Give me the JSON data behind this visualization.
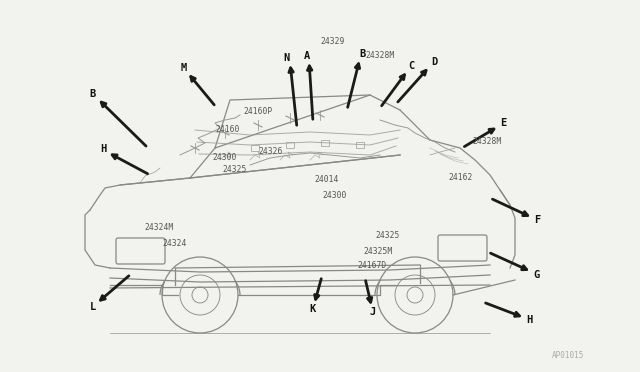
{
  "bg_color": "#f2f2ee",
  "arrow_color": "#1a1a1a",
  "text_color": "#333333",
  "part_color": "#555555",
  "car_color": "#888888",
  "wire_color": "#999999",
  "fig_width": 6.4,
  "fig_height": 3.72,
  "dpi": 100,
  "watermark": "AP01015",
  "parts": [
    [
      "24329",
      320,
      42
    ],
    [
      "24328M",
      365,
      55
    ],
    [
      "24160P",
      243,
      112
    ],
    [
      "24160",
      215,
      130
    ],
    [
      "24300",
      212,
      157
    ],
    [
      "24325",
      222,
      170
    ],
    [
      "24326",
      258,
      152
    ],
    [
      "24014",
      314,
      180
    ],
    [
      "24300",
      322,
      196
    ],
    [
      "24324M",
      144,
      228
    ],
    [
      "24324",
      162,
      244
    ],
    [
      "24325",
      375,
      236
    ],
    [
      "24325M",
      363,
      252
    ],
    [
      "24167D",
      357,
      266
    ],
    [
      "24162",
      448,
      178
    ],
    [
      "24328M",
      472,
      142
    ]
  ],
  "arrows": [
    [
      "N",
      297,
      128,
      290,
      62,
      287,
      58
    ],
    [
      "A",
      313,
      122,
      309,
      60,
      307,
      56
    ],
    [
      "B",
      347,
      110,
      360,
      58,
      362,
      54
    ],
    [
      "M",
      216,
      107,
      187,
      72,
      184,
      68
    ],
    [
      "B",
      148,
      148,
      97,
      98,
      93,
      94
    ],
    [
      "H",
      150,
      175,
      107,
      152,
      103,
      149
    ],
    [
      "C",
      380,
      108,
      408,
      70,
      411,
      66
    ],
    [
      "D",
      396,
      104,
      430,
      66,
      434,
      62
    ],
    [
      "E",
      462,
      148,
      499,
      126,
      503,
      123
    ],
    [
      "F",
      490,
      198,
      533,
      218,
      537,
      220
    ],
    [
      "G",
      488,
      252,
      532,
      272,
      537,
      275
    ],
    [
      "H",
      483,
      302,
      525,
      318,
      529,
      320
    ],
    [
      "J",
      365,
      278,
      372,
      308,
      373,
      312
    ],
    [
      "K",
      322,
      276,
      314,
      305,
      313,
      309
    ],
    [
      "L",
      131,
      274,
      96,
      304,
      93,
      307
    ]
  ]
}
